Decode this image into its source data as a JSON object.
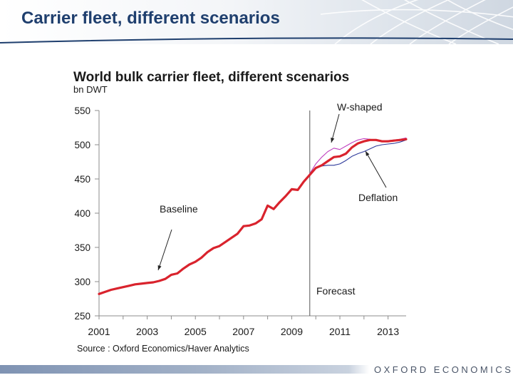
{
  "slide": {
    "title": "Carrier fleet, different scenarios",
    "logo_text": "OXFORD ECONOMICS"
  },
  "colors": {
    "title": "#1f3f6e",
    "baseline": "#d9232d",
    "w_shaped": "#c040c0",
    "deflation": "#2e3a9a",
    "axis": "#8c8c8c",
    "text": "#1a1a1a"
  },
  "chart_data": {
    "type": "line",
    "title": "World bulk carrier fleet, different scenarios",
    "subtitle": "bn DWT",
    "source": "Source : Oxford Economics/Haver Analytics",
    "xlim": [
      2001,
      2013.75
    ],
    "ylim": [
      250,
      550
    ],
    "x_ticks": [
      2001,
      2003,
      2005,
      2007,
      2009,
      2011,
      2013
    ],
    "y_ticks": [
      250,
      300,
      350,
      400,
      450,
      500,
      550
    ],
    "forecast_start": 2009.75,
    "grid": false,
    "annotations": [
      {
        "id": "w_shaped",
        "text": "W-shaped"
      },
      {
        "id": "deflation",
        "text": "Deflation"
      },
      {
        "id": "baseline",
        "text": "Baseline"
      },
      {
        "id": "forecast",
        "text": "Forecast"
      }
    ],
    "series": [
      {
        "id": "deflation",
        "style": "thin",
        "x": [
          2009.75,
          2010,
          2010.25,
          2010.5,
          2010.75,
          2011,
          2011.25,
          2011.5,
          2011.75,
          2012,
          2012.25,
          2012.5,
          2012.75,
          2013,
          2013.25,
          2013.5,
          2013.75
        ],
        "values": [
          458,
          465,
          469,
          470,
          470,
          472,
          477,
          483,
          487,
          490,
          494,
          498,
          500,
          501,
          502,
          504,
          507
        ]
      },
      {
        "id": "w_shaped",
        "style": "thin",
        "x": [
          2009.75,
          2010,
          2010.25,
          2010.5,
          2010.75,
          2011,
          2011.25,
          2011.5,
          2011.75,
          2012,
          2012.25,
          2012.5,
          2012.75,
          2013,
          2013.25,
          2013.5,
          2013.75
        ],
        "values": [
          458,
          472,
          482,
          490,
          495,
          493,
          498,
          503,
          507,
          509,
          508,
          506,
          505,
          506,
          507,
          508,
          510
        ]
      },
      {
        "id": "baseline",
        "style": "thick",
        "x": [
          2001,
          2001.25,
          2001.5,
          2001.75,
          2002,
          2002.25,
          2002.5,
          2002.75,
          2003,
          2003.25,
          2003.5,
          2003.75,
          2004,
          2004.25,
          2004.5,
          2004.75,
          2005,
          2005.25,
          2005.5,
          2005.75,
          2006,
          2006.25,
          2006.5,
          2006.75,
          2007,
          2007.25,
          2007.5,
          2007.75,
          2008,
          2008.25,
          2008.5,
          2008.75,
          2009,
          2009.25,
          2009.5,
          2009.75,
          2010,
          2010.25,
          2010.5,
          2010.75,
          2011,
          2011.25,
          2011.5,
          2011.75,
          2012,
          2012.25,
          2012.5,
          2012.75,
          2013,
          2013.25,
          2013.5,
          2013.75
        ],
        "values": [
          282,
          285,
          288,
          290,
          292,
          294,
          296,
          297,
          298,
          299,
          301,
          304,
          310,
          312,
          319,
          325,
          329,
          335,
          343,
          349,
          352,
          358,
          364,
          370,
          381,
          382,
          385,
          391,
          411,
          406,
          416,
          425,
          435,
          434,
          446,
          456,
          466,
          470,
          476,
          482,
          483,
          487,
          496,
          502,
          505,
          507,
          507,
          505,
          505,
          506,
          507,
          508
        ]
      }
    ]
  }
}
